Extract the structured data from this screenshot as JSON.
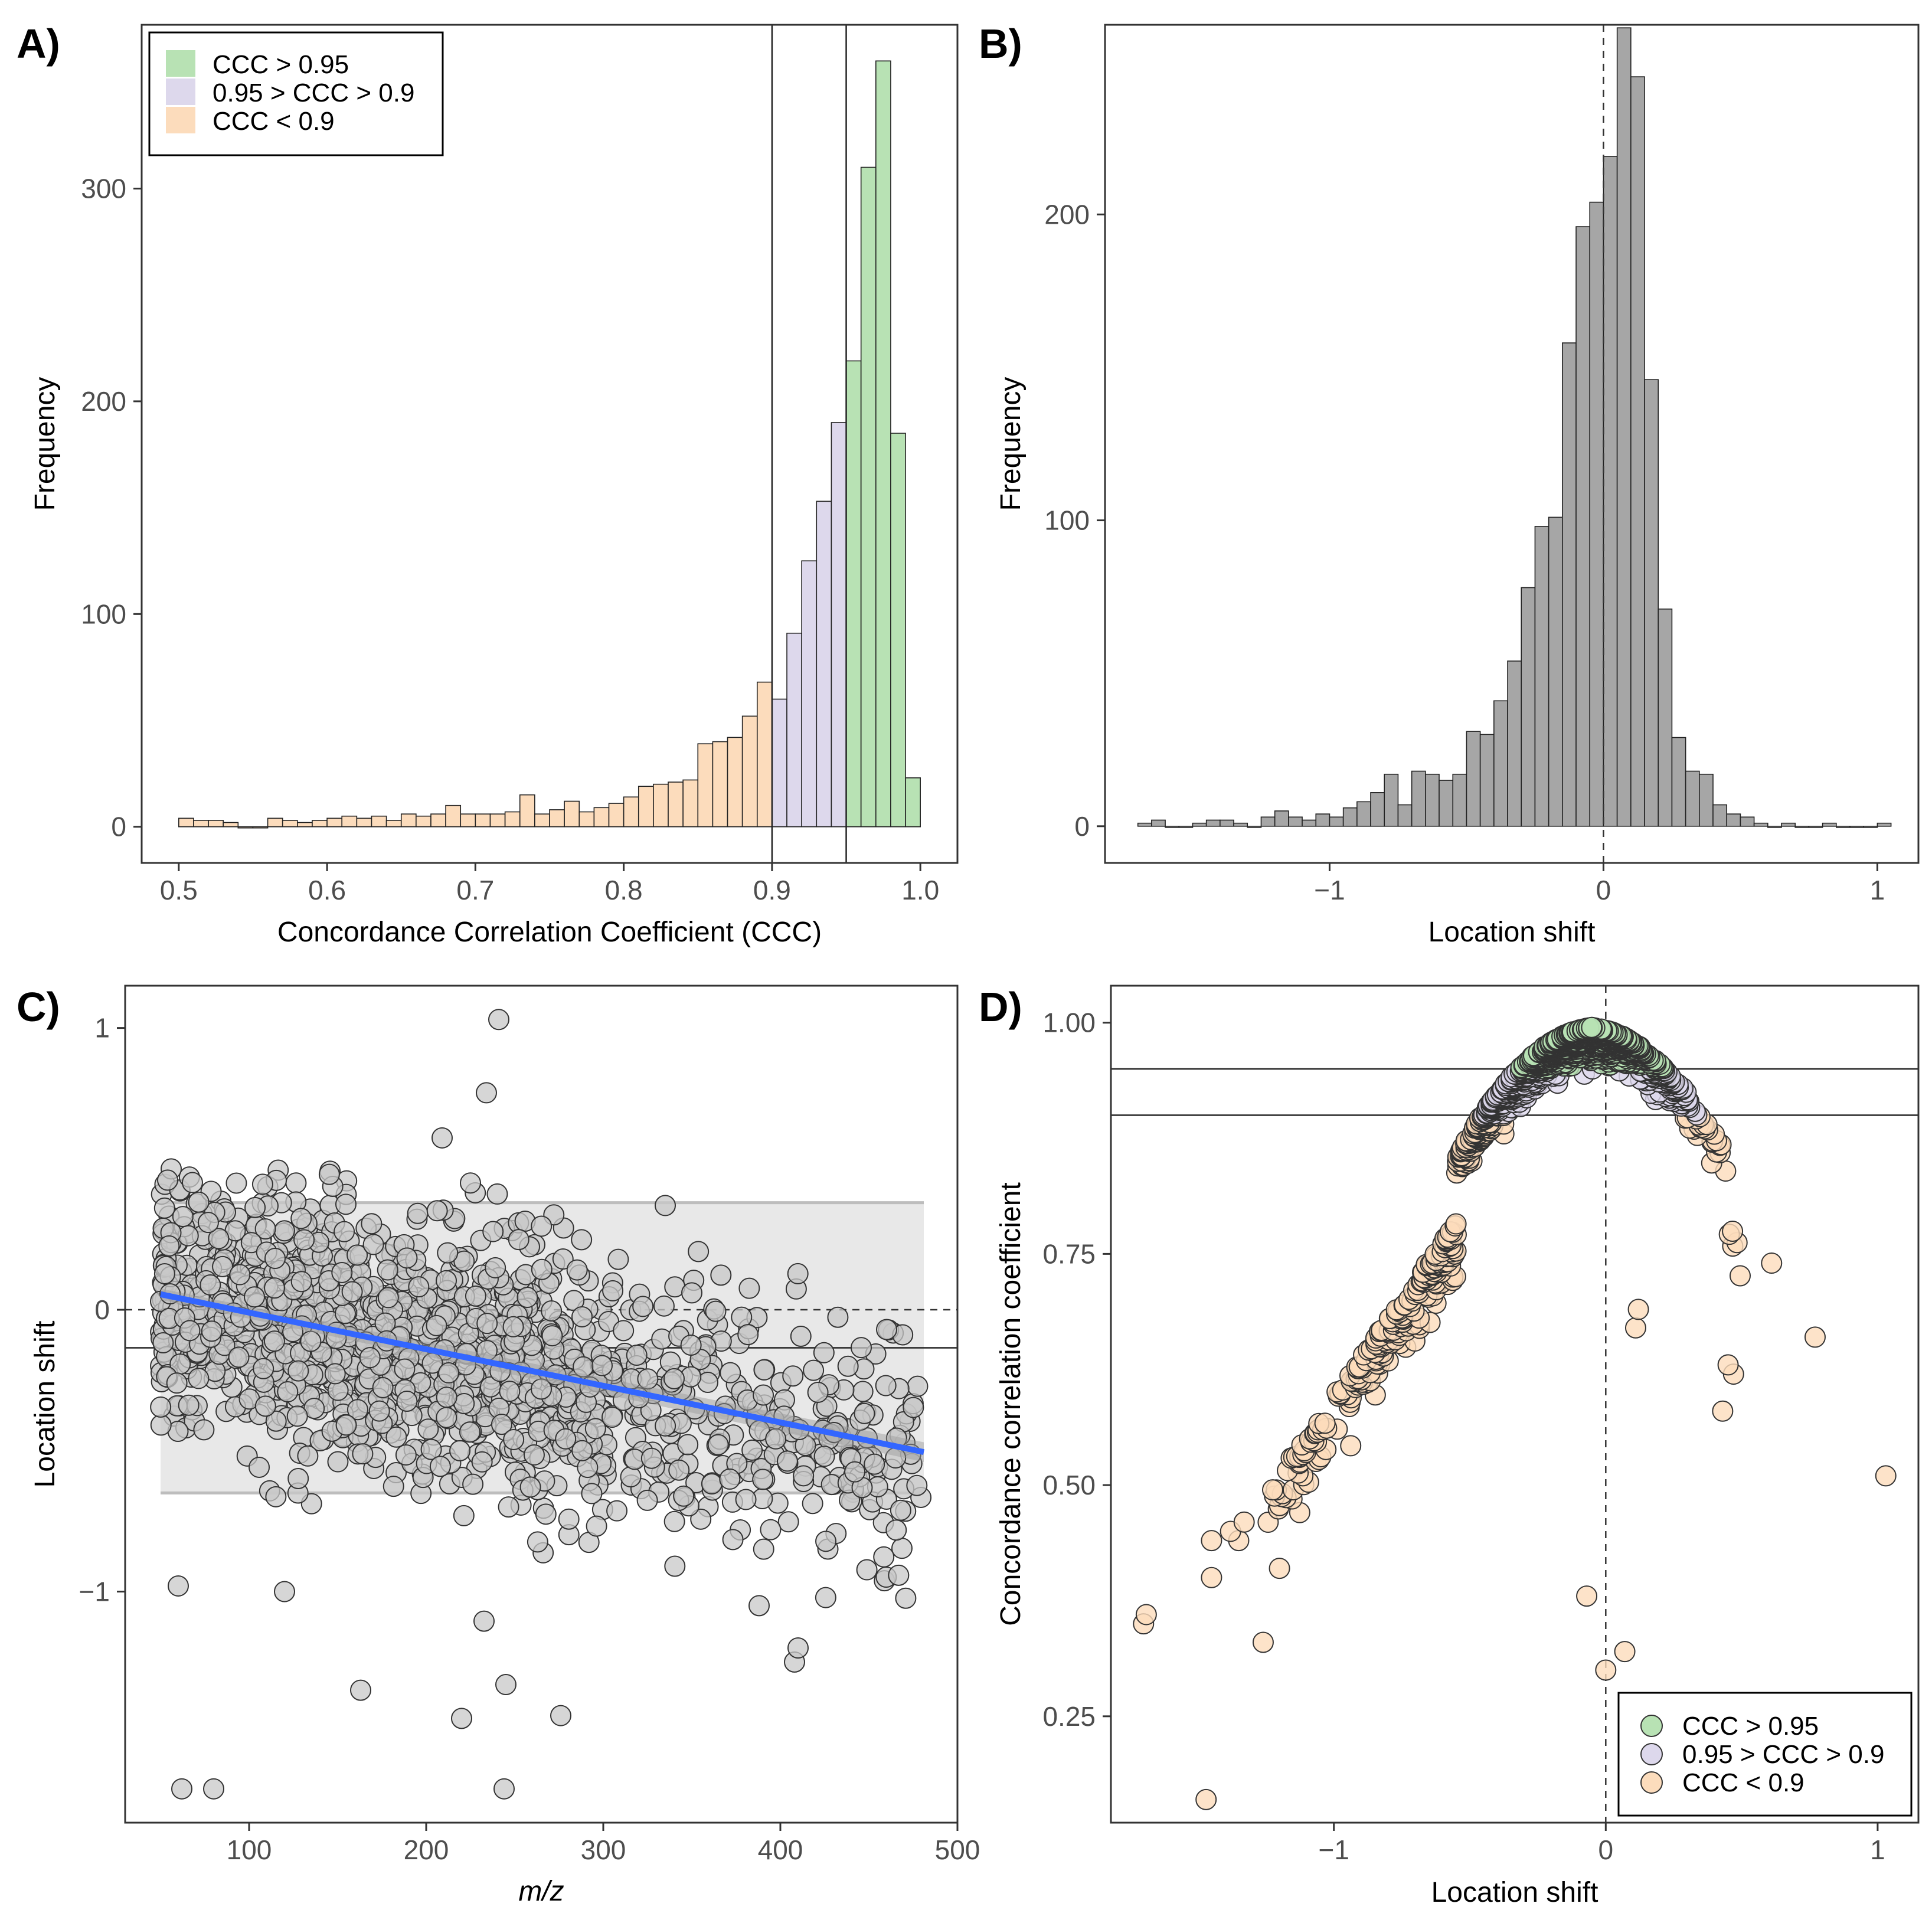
{
  "colors": {
    "green": "#b8e2b4",
    "purple": "#ddd8ec",
    "orange": "#fcdcbc",
    "gray_bar": "#a6a6a6",
    "gray_point": "#c8c8c8",
    "fit_line": "#3366ff",
    "band": "#e8e8e8"
  },
  "chart_data": [
    {
      "panel": "A)",
      "type": "bar",
      "title": "",
      "xlabel": "Concordance Correlation Coefficient (CCC)",
      "ylabel": "Frequency",
      "xlim": [
        0.475,
        1.025
      ],
      "ylim": [
        -17,
        377
      ],
      "xticks": [
        0.5,
        0.6,
        0.7,
        0.8,
        0.9,
        1.0
      ],
      "xtick_labels": [
        "0.5",
        "0.6",
        "0.7",
        "0.8",
        "0.9",
        "1.0"
      ],
      "yticks": [
        0,
        100,
        200,
        300
      ],
      "ytick_labels": [
        "0",
        "100",
        "200",
        "300"
      ],
      "bin_width": 0.01,
      "bin_starts": [
        0.5,
        0.51,
        0.52,
        0.53,
        0.54,
        0.55,
        0.56,
        0.57,
        0.58,
        0.59,
        0.6,
        0.61,
        0.62,
        0.63,
        0.64,
        0.65,
        0.66,
        0.67,
        0.68,
        0.69,
        0.7,
        0.71,
        0.72,
        0.73,
        0.74,
        0.75,
        0.76,
        0.77,
        0.78,
        0.79,
        0.8,
        0.81,
        0.82,
        0.83,
        0.84,
        0.85,
        0.86,
        0.87,
        0.88,
        0.89,
        0.9,
        0.91,
        0.92,
        0.93,
        0.94,
        0.95,
        0.96,
        0.97,
        0.98,
        0.99
      ],
      "values": [
        4,
        3,
        3,
        2,
        0,
        0,
        4,
        3,
        2,
        3,
        4,
        5,
        4,
        5,
        3,
        6,
        5,
        6,
        10,
        6,
        6,
        6,
        7,
        15,
        6,
        8,
        12,
        7,
        9,
        11,
        14,
        19,
        20,
        21,
        22,
        39,
        40,
        42,
        52,
        68,
        60,
        91,
        125,
        153,
        190,
        219,
        310,
        360,
        185,
        23
      ],
      "vlines": [
        0.9,
        0.95
      ],
      "legend": {
        "position": "top-left",
        "entries": [
          "CCC > 0.95",
          "0.95 > CCC > 0.9",
          "CCC < 0.9"
        ]
      }
    },
    {
      "panel": "B)",
      "type": "bar",
      "title": "",
      "xlabel": "Location shift",
      "ylabel": "Frequency",
      "xlim": [
        -1.82,
        1.15
      ],
      "ylim": [
        -12,
        262
      ],
      "xticks": [
        -1,
        0,
        1
      ],
      "xtick_labels": [
        "−1",
        "0",
        "1"
      ],
      "yticks": [
        0,
        100,
        200
      ],
      "ytick_labels": [
        "0",
        "100",
        "200"
      ],
      "bin_width": 0.05,
      "bin_starts": [
        -1.7,
        -1.65,
        -1.6,
        -1.55,
        -1.5,
        -1.45,
        -1.4,
        -1.35,
        -1.3,
        -1.25,
        -1.2,
        -1.15,
        -1.1,
        -1.05,
        -1.0,
        -0.95,
        -0.9,
        -0.85,
        -0.8,
        -0.75,
        -0.7,
        -0.65,
        -0.6,
        -0.55,
        -0.5,
        -0.45,
        -0.4,
        -0.35,
        -0.3,
        -0.25,
        -0.2,
        -0.15,
        -0.1,
        -0.05,
        0.0,
        0.05,
        0.1,
        0.15,
        0.2,
        0.25,
        0.3,
        0.35,
        0.4,
        0.45,
        0.5,
        0.55,
        0.6,
        0.65,
        0.7,
        0.75,
        0.8,
        0.85,
        0.9,
        0.95,
        1.0
      ],
      "values": [
        1,
        2,
        0,
        0,
        1,
        2,
        2,
        1,
        0,
        3,
        5,
        3,
        2,
        4,
        3,
        6,
        8,
        11,
        17,
        7,
        18,
        17,
        15,
        17,
        31,
        30,
        41,
        54,
        78,
        98,
        101,
        158,
        196,
        204,
        219,
        261,
        245,
        146,
        71,
        29,
        18,
        17,
        7,
        4,
        3,
        1,
        0,
        1,
        0,
        0,
        1,
        0,
        0,
        0,
        1
      ],
      "vline_dashed": 0
    },
    {
      "panel": "C)",
      "type": "scatter",
      "title": "",
      "xlabel": "m/z",
      "ylabel": "Location shift",
      "xlim": [
        30,
        500
      ],
      "ylim": [
        -1.82,
        1.15
      ],
      "xticks": [
        100,
        200,
        300,
        400,
        500
      ],
      "xtick_labels": [
        "100",
        "200",
        "300",
        "400",
        "500"
      ],
      "yticks": [
        -1,
        0,
        1
      ],
      "ytick_labels": [
        "−1",
        "0",
        "1"
      ],
      "hline_dashed": 0,
      "hline_solid": -0.135,
      "band": {
        "x": [
          50,
          481
        ],
        "upper": [
          0.38,
          0.38
        ],
        "lower": [
          -0.65,
          -0.65
        ]
      },
      "fit_line": {
        "x": [
          50,
          481
        ],
        "y": [
          0.055,
          -0.505
        ]
      },
      "fit_band_upper": [
        0.075,
        -0.47
      ],
      "fit_band_lower": [
        0.035,
        -0.54
      ],
      "n_points": 1560,
      "outliers": [
        {
          "x": 241,
          "y": 1.03
        },
        {
          "x": 234,
          "y": 0.77
        },
        {
          "x": 209,
          "y": 0.61
        },
        {
          "x": 225,
          "y": 0.45
        },
        {
          "x": 56,
          "y": 0.5
        },
        {
          "x": 54,
          "y": 0.46
        },
        {
          "x": 62,
          "y": -1.7
        },
        {
          "x": 80,
          "y": -1.7
        },
        {
          "x": 244,
          "y": -1.7
        },
        {
          "x": 163,
          "y": -1.35
        },
        {
          "x": 220,
          "y": -1.45
        },
        {
          "x": 276,
          "y": -1.44
        },
        {
          "x": 245,
          "y": -1.33
        },
        {
          "x": 408,
          "y": -1.25
        },
        {
          "x": 410,
          "y": -1.2
        },
        {
          "x": 388,
          "y": -1.05
        },
        {
          "x": 120,
          "y": -1.0
        },
        {
          "x": 60,
          "y": -0.98
        },
        {
          "x": 460,
          "y": -0.07
        },
        {
          "x": 350,
          "y": 0.06
        },
        {
          "x": 335,
          "y": 0.37
        }
      ]
    },
    {
      "panel": "D)",
      "type": "scatter",
      "title": "",
      "xlabel": "Location shift",
      "ylabel": "Concordance correlation coefficient",
      "xlim": [
        -1.82,
        1.15
      ],
      "ylim": [
        0.135,
        1.04
      ],
      "xticks": [
        -1,
        0,
        1
      ],
      "xtick_labels": [
        "−1",
        "0",
        "1"
      ],
      "yticks": [
        0.25,
        0.5,
        0.75,
        1.0
      ],
      "ytick_labels": [
        "0.25",
        "0.50",
        "0.75",
        "1.00"
      ],
      "hlines": [
        0.95,
        0.9
      ],
      "vline_dashed": 0,
      "n_points": 1560,
      "outliers": [
        {
          "x": -1.7,
          "y": 0.35
        },
        {
          "x": -1.69,
          "y": 0.36
        },
        {
          "x": -1.47,
          "y": 0.16
        },
        {
          "x": -1.45,
          "y": 0.4
        },
        {
          "x": -1.45,
          "y": 0.44
        },
        {
          "x": -1.38,
          "y": 0.45
        },
        {
          "x": -1.35,
          "y": 0.44
        },
        {
          "x": -1.33,
          "y": 0.46
        },
        {
          "x": -1.26,
          "y": 0.33
        },
        {
          "x": -1.2,
          "y": 0.41
        },
        {
          "x": -0.07,
          "y": 0.38
        },
        {
          "x": 0.0,
          "y": 0.3
        },
        {
          "x": 0.07,
          "y": 0.32
        },
        {
          "x": 1.03,
          "y": 0.51
        },
        {
          "x": 0.77,
          "y": 0.66
        },
        {
          "x": 0.61,
          "y": 0.74
        },
        {
          "x": 0.45,
          "y": 0.63
        },
        {
          "x": 0.47,
          "y": 0.62
        },
        {
          "x": 0.43,
          "y": 0.58
        },
        {
          "x": 0.12,
          "y": 0.69
        },
        {
          "x": 0.11,
          "y": 0.67
        }
      ],
      "legend": {
        "position": "bottom-right",
        "entries": [
          "CCC > 0.95",
          "0.95 > CCC > 0.9",
          "CCC < 0.9"
        ]
      }
    }
  ]
}
